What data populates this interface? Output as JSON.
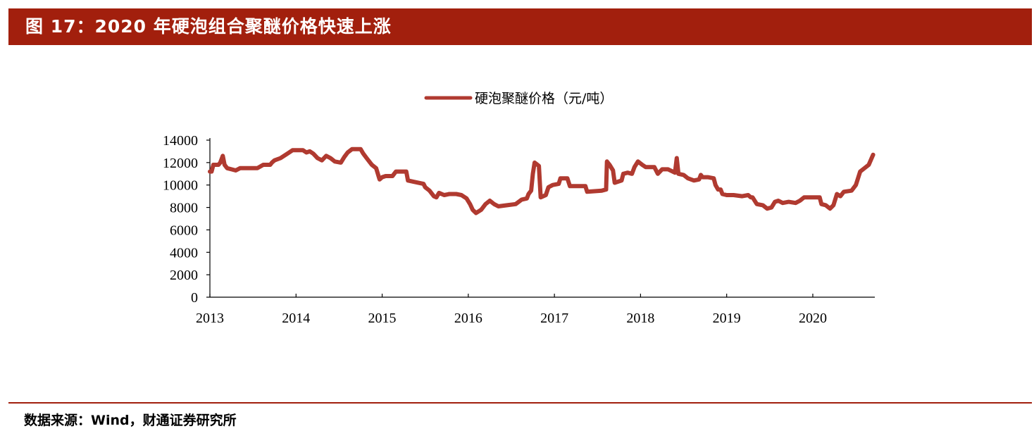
{
  "header": {
    "title": "图 17：2020 年硬泡组合聚醚价格快速上涨",
    "bar_color": "#a21f0d"
  },
  "footer": {
    "source": "数据来源：Wind，财通证券研究所"
  },
  "chart_data": {
    "type": "line",
    "title": "",
    "xlabel": "",
    "ylabel": "",
    "ylim": [
      0,
      14000
    ],
    "y_ticks": [
      "0",
      "2000",
      "4000",
      "6000",
      "8000",
      "10000",
      "12000",
      "14000"
    ],
    "x_ticks": [
      "2013",
      "2014",
      "2015",
      "2016",
      "2017",
      "2018",
      "2019",
      "2020"
    ],
    "xlim": [
      2013.0,
      2020.72
    ],
    "legend_position": "top-center",
    "grid": false,
    "series": [
      {
        "name": "硬泡聚醚价格（元/吨）",
        "color": "#b03a30",
        "points": [
          [
            2013.0,
            11200
          ],
          [
            2013.02,
            11200
          ],
          [
            2013.04,
            11800
          ],
          [
            2013.1,
            11800
          ],
          [
            2013.12,
            12000
          ],
          [
            2013.15,
            12600
          ],
          [
            2013.17,
            11800
          ],
          [
            2013.2,
            11500
          ],
          [
            2013.25,
            11400
          ],
          [
            2013.3,
            11300
          ],
          [
            2013.35,
            11500
          ],
          [
            2013.45,
            11500
          ],
          [
            2013.55,
            11500
          ],
          [
            2013.62,
            11800
          ],
          [
            2013.7,
            11800
          ],
          [
            2013.72,
            12000
          ],
          [
            2013.75,
            12200
          ],
          [
            2013.82,
            12400
          ],
          [
            2013.9,
            12800
          ],
          [
            2013.96,
            13100
          ],
          [
            2014.08,
            13100
          ],
          [
            2014.12,
            12900
          ],
          [
            2014.16,
            13000
          ],
          [
            2014.2,
            12800
          ],
          [
            2014.25,
            12400
          ],
          [
            2014.3,
            12200
          ],
          [
            2014.35,
            12600
          ],
          [
            2014.4,
            12400
          ],
          [
            2014.45,
            12100
          ],
          [
            2014.52,
            12000
          ],
          [
            2014.56,
            12500
          ],
          [
            2014.6,
            12900
          ],
          [
            2014.65,
            13200
          ],
          [
            2014.75,
            13200
          ],
          [
            2014.78,
            12800
          ],
          [
            2014.82,
            12400
          ],
          [
            2014.88,
            11800
          ],
          [
            2014.93,
            11500
          ],
          [
            2014.97,
            10500
          ],
          [
            2015.0,
            10700
          ],
          [
            2015.04,
            10800
          ],
          [
            2015.12,
            10800
          ],
          [
            2015.16,
            11200
          ],
          [
            2015.28,
            11200
          ],
          [
            2015.3,
            10400
          ],
          [
            2015.36,
            10300
          ],
          [
            2015.48,
            10100
          ],
          [
            2015.5,
            9800
          ],
          [
            2015.55,
            9500
          ],
          [
            2015.6,
            9000
          ],
          [
            2015.63,
            8900
          ],
          [
            2015.66,
            9300
          ],
          [
            2015.72,
            9100
          ],
          [
            2015.78,
            9200
          ],
          [
            2015.86,
            9200
          ],
          [
            2015.92,
            9100
          ],
          [
            2015.98,
            8800
          ],
          [
            2016.02,
            8300
          ],
          [
            2016.05,
            7800
          ],
          [
            2016.09,
            7500
          ],
          [
            2016.15,
            7800
          ],
          [
            2016.2,
            8300
          ],
          [
            2016.25,
            8600
          ],
          [
            2016.3,
            8300
          ],
          [
            2016.35,
            8100
          ],
          [
            2016.45,
            8200
          ],
          [
            2016.55,
            8300
          ],
          [
            2016.62,
            8700
          ],
          [
            2016.68,
            8800
          ],
          [
            2016.7,
            9200
          ],
          [
            2016.73,
            9500
          ],
          [
            2016.75,
            11000
          ],
          [
            2016.77,
            12000
          ],
          [
            2016.82,
            11700
          ],
          [
            2016.84,
            8900
          ],
          [
            2016.9,
            9100
          ],
          [
            2016.93,
            9800
          ],
          [
            2016.98,
            10000
          ],
          [
            2017.05,
            10100
          ],
          [
            2017.07,
            10600
          ],
          [
            2017.15,
            10600
          ],
          [
            2017.18,
            9900
          ],
          [
            2017.25,
            9900
          ],
          [
            2017.36,
            9900
          ],
          [
            2017.38,
            9400
          ],
          [
            2017.55,
            9500
          ],
          [
            2017.6,
            9600
          ],
          [
            2017.61,
            12100
          ],
          [
            2017.64,
            11800
          ],
          [
            2017.68,
            11300
          ],
          [
            2017.7,
            10200
          ],
          [
            2017.78,
            10400
          ],
          [
            2017.8,
            11000
          ],
          [
            2017.85,
            11100
          ],
          [
            2017.9,
            11000
          ],
          [
            2017.93,
            11600
          ],
          [
            2017.97,
            12100
          ],
          [
            2018.02,
            11800
          ],
          [
            2018.06,
            11600
          ],
          [
            2018.16,
            11600
          ],
          [
            2018.2,
            11000
          ],
          [
            2018.25,
            11400
          ],
          [
            2018.32,
            11400
          ],
          [
            2018.4,
            11100
          ],
          [
            2018.42,
            12400
          ],
          [
            2018.44,
            11000
          ],
          [
            2018.5,
            10900
          ],
          [
            2018.55,
            10600
          ],
          [
            2018.62,
            10400
          ],
          [
            2018.68,
            10500
          ],
          [
            2018.7,
            10900
          ],
          [
            2018.72,
            10700
          ],
          [
            2018.78,
            10700
          ],
          [
            2018.85,
            10600
          ],
          [
            2018.87,
            10000
          ],
          [
            2018.9,
            9600
          ],
          [
            2018.93,
            9600
          ],
          [
            2018.95,
            9200
          ],
          [
            2019.0,
            9100
          ],
          [
            2019.08,
            9100
          ],
          [
            2019.18,
            9000
          ],
          [
            2019.25,
            9100
          ],
          [
            2019.28,
            8900
          ],
          [
            2019.3,
            8900
          ],
          [
            2019.35,
            8300
          ],
          [
            2019.42,
            8200
          ],
          [
            2019.47,
            7900
          ],
          [
            2019.52,
            8000
          ],
          [
            2019.56,
            8500
          ],
          [
            2019.6,
            8600
          ],
          [
            2019.65,
            8400
          ],
          [
            2019.72,
            8500
          ],
          [
            2019.8,
            8400
          ],
          [
            2019.85,
            8600
          ],
          [
            2019.9,
            8900
          ],
          [
            2020.0,
            8900
          ],
          [
            2020.08,
            8900
          ],
          [
            2020.1,
            8300
          ],
          [
            2020.15,
            8200
          ],
          [
            2020.2,
            7900
          ],
          [
            2020.24,
            8200
          ],
          [
            2020.28,
            9200
          ],
          [
            2020.32,
            9000
          ],
          [
            2020.36,
            9400
          ],
          [
            2020.45,
            9500
          ],
          [
            2020.5,
            10000
          ],
          [
            2020.55,
            11200
          ],
          [
            2020.6,
            11500
          ],
          [
            2020.65,
            11800
          ],
          [
            2020.7,
            12700
          ]
        ]
      }
    ]
  }
}
